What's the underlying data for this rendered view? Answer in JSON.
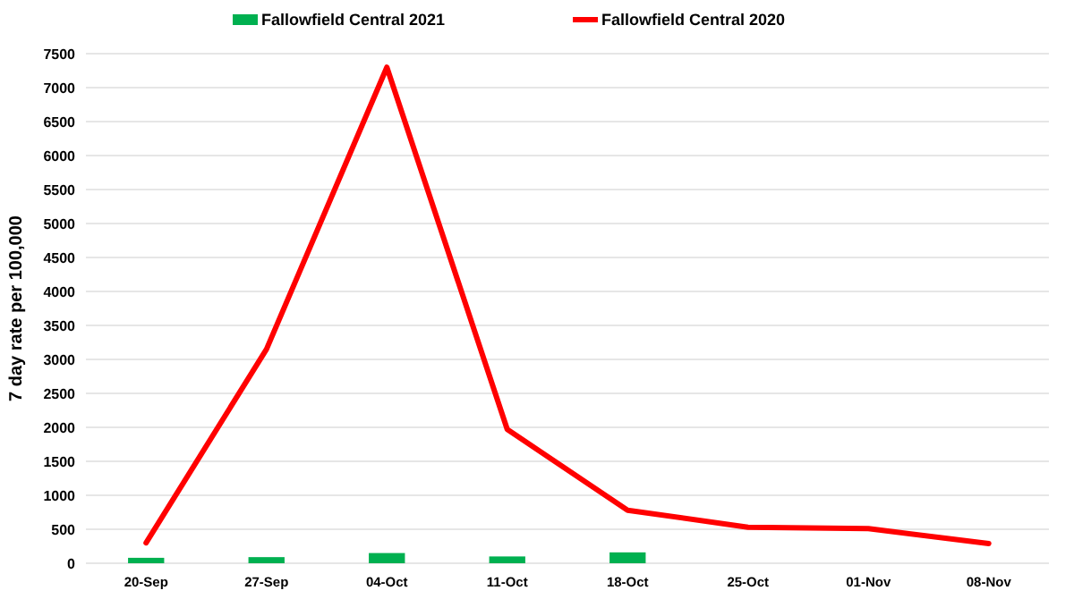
{
  "chart_data": {
    "type": "bar",
    "ylabel": "7 day rate per 100,000",
    "categories": [
      "20-Sep",
      "27-Sep",
      "04-Oct",
      "11-Oct",
      "18-Oct",
      "25-Oct",
      "01-Nov",
      "08-Nov"
    ],
    "series": [
      {
        "name": "Fallowfield Central 2021",
        "color": "#00b050",
        "values": [
          80,
          90,
          150,
          100,
          160,
          null,
          null,
          null
        ]
      },
      {
        "name": "Fallowfield Central 2020",
        "color": "#ff0000",
        "type": "line",
        "values": [
          300,
          3150,
          7300,
          1970,
          780,
          530,
          510,
          290
        ]
      }
    ],
    "ylim": [
      0,
      7500
    ],
    "yticks": [
      0,
      500,
      1000,
      1500,
      2000,
      2500,
      3000,
      3500,
      4000,
      4500,
      5000,
      5500,
      6000,
      6500,
      7000,
      7500
    ],
    "grid": "y",
    "legend": "top"
  }
}
